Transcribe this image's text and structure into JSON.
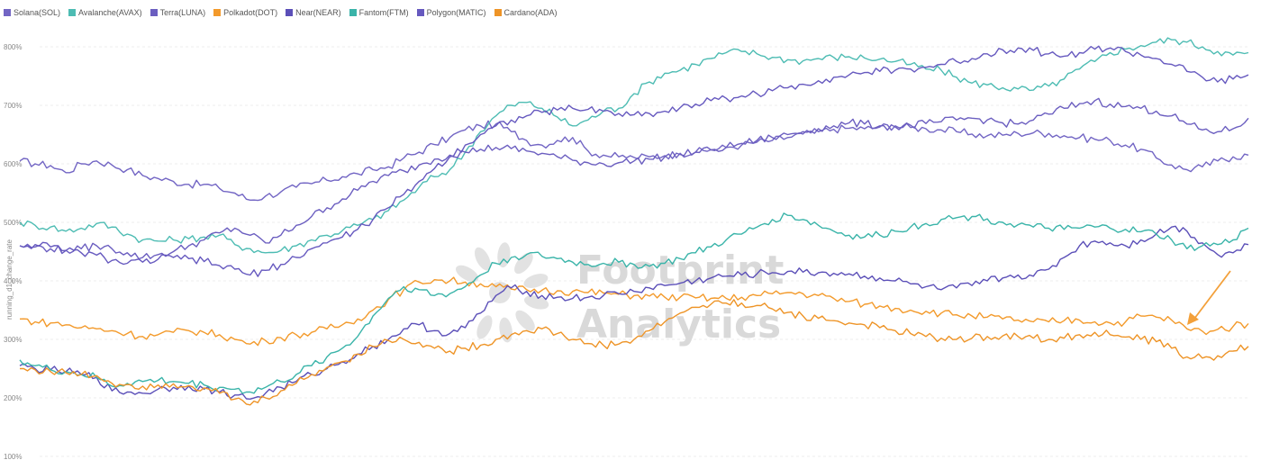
{
  "chart_data": {
    "type": "line",
    "ylabel": "running_d1_change_rate",
    "ylim": [
      100,
      820
    ],
    "yticks": [
      "100%",
      "200%",
      "300%",
      "400%",
      "500%",
      "600%",
      "700%",
      "800%"
    ],
    "ytick_values": [
      100,
      200,
      300,
      400,
      500,
      600,
      700,
      800
    ],
    "grid": "horizontal-dashed",
    "legend_position": "top-left",
    "watermark": [
      "Footprint",
      "Analytics"
    ],
    "annotation": "orange arrow pointing at the Polkadot(DOT) line near the right end",
    "series": [
      {
        "name": "Solana(SOL)",
        "color": "#7265c4",
        "values": [
          605,
          600,
          597,
          585,
          600,
          605,
          598,
          590,
          580,
          575,
          570,
          565,
          565,
          558,
          550,
          538,
          545,
          552,
          560,
          566,
          572,
          578,
          583,
          590,
          595,
          610,
          620,
          633,
          645,
          658,
          665,
          668,
          655,
          640,
          632,
          640,
          645,
          622,
          615,
          612,
          611,
          612,
          614,
          618,
          620,
          624,
          628,
          632,
          637,
          640,
          645,
          651,
          655,
          659,
          661,
          660,
          663,
          665,
          662,
          660,
          658,
          655,
          651,
          648,
          649,
          652,
          653,
          652,
          648,
          645,
          642,
          640,
          632,
          625,
          610,
          598,
          590,
          595,
          605,
          612,
          615
        ]
      },
      {
        "name": "Avalanche(AVAX)",
        "color": "#4dbcb3",
        "values": [
          500,
          495,
          492,
          485,
          490,
          498,
          492,
          480,
          470,
          468,
          470,
          472,
          475,
          478,
          462,
          455,
          448,
          452,
          460,
          470,
          478,
          486,
          495,
          505,
          520,
          538,
          560,
          578,
          590,
          620,
          655,
          682,
          700,
          705,
          695,
          680,
          665,
          675,
          690,
          695,
          720,
          740,
          755,
          760,
          770,
          780,
          790,
          792,
          788,
          782,
          778,
          776,
          780,
          782,
          783,
          781,
          779,
          775,
          770,
          762,
          760,
          748,
          738,
          735,
          730,
          728,
          726,
          733,
          745,
          762,
          775,
          790,
          796,
          802,
          808,
          812,
          808,
          800,
          792,
          786,
          790
        ]
      },
      {
        "name": "Terra(LUNA)",
        "color": "#6b5ec0",
        "values": [
          460,
          458,
          455,
          452,
          455,
          460,
          455,
          448,
          440,
          445,
          450,
          460,
          470,
          482,
          490,
          478,
          465,
          478,
          495,
          510,
          525,
          540,
          555,
          570,
          580,
          588,
          598,
          608,
          615,
          620,
          625,
          628,
          626,
          622,
          618,
          612,
          606,
          602,
          600,
          602,
          605,
          608,
          612,
          616,
          620,
          624,
          628,
          635,
          640,
          645,
          650,
          655,
          660,
          665,
          670,
          668,
          665,
          663,
          666,
          669,
          672,
          675,
          678,
          675,
          670,
          668,
          675,
          685,
          695,
          703,
          708,
          702,
          698,
          695,
          690,
          682,
          668,
          658,
          655,
          660,
          678
        ]
      },
      {
        "name": "Polkadot(DOT)",
        "color": "#f39a2b",
        "values": [
          335,
          330,
          328,
          325,
          320,
          318,
          315,
          310,
          305,
          308,
          312,
          315,
          312,
          308,
          300,
          292,
          298,
          303,
          308,
          312,
          318,
          325,
          335,
          350,
          368,
          385,
          398,
          402,
          400,
          398,
          395,
          390,
          386,
          385,
          384,
          383,
          382,
          380,
          379,
          377,
          375,
          374,
          372,
          372,
          371,
          370,
          370,
          372,
          375,
          378,
          380,
          378,
          375,
          370,
          365,
          360,
          357,
          353,
          350,
          348,
          345,
          342,
          340,
          338,
          335,
          333,
          330,
          330,
          332,
          333,
          330,
          328,
          330,
          340,
          338,
          333,
          318,
          314,
          317,
          322,
          327
        ]
      },
      {
        "name": "Near(NEAR)",
        "color": "#5b4fb8",
        "values": [
          255,
          250,
          248,
          245,
          240,
          235,
          212,
          210,
          208,
          215,
          218,
          220,
          215,
          210,
          205,
          198,
          208,
          218,
          228,
          240,
          250,
          262,
          275,
          288,
          300,
          318,
          325,
          315,
          310,
          320,
          345,
          375,
          388,
          382,
          375,
          372,
          370,
          372,
          375,
          378,
          382,
          388,
          392,
          396,
          400,
          405,
          408,
          410,
          412,
          414,
          416,
          415,
          414,
          413,
          412,
          408,
          405,
          400,
          395,
          390,
          385,
          388,
          392,
          400,
          405,
          410,
          408,
          420,
          440,
          460,
          468,
          465,
          460,
          470,
          480,
          492,
          485,
          465,
          445,
          448,
          462
        ]
      },
      {
        "name": "Fantom(FTM)",
        "color": "#3ab4a9",
        "values": [
          265,
          255,
          248,
          245,
          240,
          235,
          220,
          225,
          228,
          230,
          228,
          225,
          222,
          218,
          215,
          210,
          218,
          228,
          240,
          255,
          270,
          285,
          305,
          340,
          370,
          390,
          385,
          375,
          378,
          390,
          410,
          430,
          440,
          445,
          442,
          438,
          432,
          428,
          430,
          432,
          428,
          425,
          430,
          438,
          448,
          458,
          470,
          480,
          492,
          505,
          512,
          505,
          495,
          485,
          478,
          475,
          478,
          485,
          492,
          498,
          505,
          508,
          510,
          506,
          500,
          496,
          492,
          490,
          488,
          490,
          492,
          490,
          488,
          484,
          480,
          470,
          455,
          460,
          462,
          470,
          490
        ]
      },
      {
        "name": "Polygon(MATIC)",
        "color": "#6659bf",
        "values": [
          460,
          462,
          458,
          452,
          448,
          444,
          435,
          430,
          432,
          437,
          440,
          438,
          433,
          426,
          420,
          410,
          418,
          428,
          440,
          455,
          465,
          475,
          488,
          505,
          525,
          548,
          570,
          592,
          612,
          632,
          650,
          665,
          675,
          682,
          688,
          692,
          695,
          693,
          690,
          686,
          684,
          686,
          690,
          696,
          702,
          708,
          712,
          716,
          720,
          725,
          730,
          736,
          742,
          748,
          752,
          756,
          758,
          760,
          762,
          765,
          770,
          775,
          780,
          788,
          795,
          798,
          794,
          788,
          784,
          790,
          796,
          798,
          792,
          786,
          780,
          770,
          758,
          748,
          740,
          745,
          752
        ]
      },
      {
        "name": "Cardano(ADA)",
        "color": "#ee9427",
        "values": [
          250,
          248,
          245,
          243,
          240,
          238,
          225,
          223,
          220,
          222,
          224,
          221,
          217,
          208,
          198,
          188,
          200,
          212,
          225,
          240,
          252,
          262,
          275,
          288,
          298,
          300,
          295,
          285,
          280,
          285,
          290,
          300,
          308,
          315,
          318,
          310,
          300,
          293,
          290,
          292,
          300,
          315,
          330,
          345,
          355,
          360,
          362,
          362,
          358,
          352,
          346,
          340,
          336,
          332,
          328,
          325,
          320,
          315,
          310,
          305,
          302,
          300,
          302,
          305,
          306,
          305,
          302,
          300,
          302,
          308,
          312,
          308,
          304,
          300,
          296,
          285,
          270,
          268,
          272,
          280,
          288
        ]
      }
    ]
  }
}
